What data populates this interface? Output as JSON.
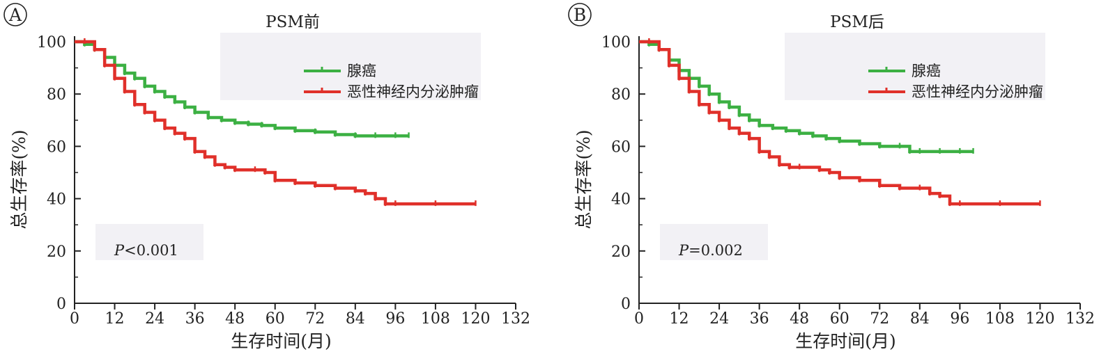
{
  "chart_data": [
    {
      "type": "line",
      "panel_label": "A",
      "title": "PSM前",
      "xlabel": "生存时间(月)",
      "ylabel": "总生存率(%)",
      "xlim": [
        0,
        132
      ],
      "ylim": [
        0,
        100
      ],
      "x_ticks": [
        "0",
        "12",
        "24",
        "36",
        "48",
        "60",
        "72",
        "84",
        "96",
        "108",
        "120",
        "132"
      ],
      "y_ticks": [
        "0",
        "20",
        "40",
        "60",
        "80",
        "100"
      ],
      "legend_position": "top-right",
      "annotation": {
        "italic": "P",
        "rest": "<0.001"
      },
      "series": [
        {
          "name": "腺癌",
          "color": "#3cb043",
          "x": [
            0,
            3,
            6,
            9,
            12,
            15,
            18,
            21,
            24,
            27,
            30,
            33,
            36,
            40,
            44,
            48,
            52,
            56,
            60,
            66,
            72,
            78,
            84,
            90,
            96,
            100
          ],
          "y": [
            100,
            99,
            97,
            94,
            91,
            88,
            86,
            83,
            81,
            79,
            77,
            75,
            73,
            71,
            70,
            69,
            68.5,
            68,
            67,
            66,
            65.5,
            64.5,
            64,
            64,
            64,
            64
          ]
        },
        {
          "name": "恶性神经内分泌肿瘤",
          "color": "#e0302a",
          "x": [
            0,
            3,
            6,
            9,
            12,
            15,
            18,
            21,
            24,
            27,
            30,
            33,
            36,
            39,
            42,
            45,
            48,
            54,
            57,
            60,
            66,
            72,
            78,
            84,
            87,
            90,
            93,
            96,
            108,
            120
          ],
          "y": [
            100,
            100,
            97,
            91,
            86,
            81,
            76,
            73,
            70,
            67,
            65,
            63,
            58,
            56,
            53,
            52,
            51,
            51,
            50,
            47,
            46,
            45,
            44,
            43,
            42,
            40,
            38,
            38,
            38,
            38
          ]
        }
      ]
    },
    {
      "type": "line",
      "panel_label": "B",
      "title": "PSM后",
      "xlabel": "生存时间(月)",
      "ylabel": "总生存率(%)",
      "xlim": [
        0,
        132
      ],
      "ylim": [
        0,
        100
      ],
      "x_ticks": [
        "0",
        "12",
        "24",
        "36",
        "48",
        "60",
        "72",
        "84",
        "96",
        "108",
        "120",
        "132"
      ],
      "y_ticks": [
        "0",
        "20",
        "40",
        "60",
        "80",
        "100"
      ],
      "legend_position": "top-right",
      "annotation": {
        "italic": "P",
        "rest": "=0.002"
      },
      "series": [
        {
          "name": "腺癌",
          "color": "#3cb043",
          "x": [
            0,
            3,
            6,
            9,
            12,
            15,
            18,
            21,
            24,
            27,
            30,
            33,
            36,
            40,
            44,
            48,
            52,
            56,
            60,
            66,
            72,
            78,
            81,
            84,
            90,
            96,
            100
          ],
          "y": [
            100,
            99,
            97,
            93,
            89,
            86,
            83,
            80,
            77,
            75,
            72,
            70,
            68,
            67,
            66,
            65,
            64,
            63,
            62,
            61,
            60,
            60,
            58,
            58,
            58,
            58,
            58
          ]
        },
        {
          "name": "恶性神经内分泌肿瘤",
          "color": "#e0302a",
          "x": [
            0,
            3,
            6,
            9,
            12,
            15,
            18,
            21,
            24,
            27,
            30,
            33,
            36,
            39,
            42,
            45,
            48,
            54,
            57,
            60,
            66,
            72,
            78,
            84,
            87,
            90,
            93,
            96,
            108,
            120
          ],
          "y": [
            100,
            100,
            97,
            91,
            86,
            81,
            76,
            73,
            70,
            67,
            65,
            63,
            58,
            56,
            53,
            52,
            52,
            51,
            50,
            48,
            47,
            45,
            44,
            44,
            42,
            41,
            38,
            38,
            38,
            38
          ]
        }
      ]
    }
  ]
}
